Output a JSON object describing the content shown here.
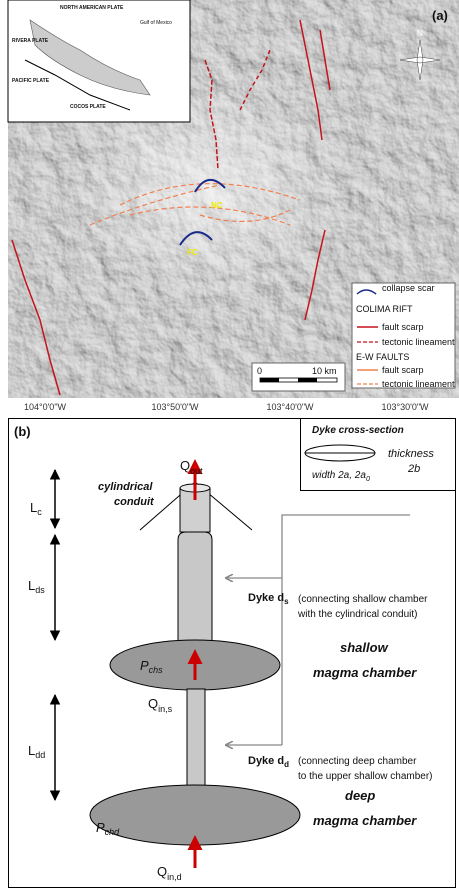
{
  "map": {
    "label": "(a)",
    "north": "N",
    "volcanoes": [
      "NC",
      "FC"
    ],
    "inset": [
      "NORTH AMERICAN PLATE",
      "Gulf of Mexico",
      "RIVERA PLATE",
      "PACIFIC PLATE",
      "COCOS PLATE"
    ],
    "legend": [
      "collapse scar",
      "COLIMA RIFT",
      "fault scarp",
      "tectonic lineament",
      "E-W FAULTS",
      "fault scarp",
      "tectonic lineament"
    ],
    "scale": [
      "0",
      "10 km"
    ],
    "x_labels": [
      "104°0'0\"W",
      "103°50'0\"W",
      "103°40'0\"W",
      "103°30'0\"W"
    ]
  },
  "diagram": {
    "label": "(b)",
    "cross_section": {
      "title": "Dyke cross-section",
      "thickness": [
        "thickness",
        "2b"
      ],
      "width": {
        "main": "width 2a, 2a",
        "sub": "0"
      }
    },
    "q_out": {
      "main": "Q",
      "sub": "out"
    },
    "conduit": [
      "cylindrical",
      "conduit"
    ],
    "l_c": {
      "main": "L",
      "sub": "c"
    },
    "l_ds": {
      "main": "L",
      "sub": "ds"
    },
    "l_dd": {
      "main": "L",
      "sub": "dd"
    },
    "dyke_ds": {
      "main": "Dyke d",
      "sub": "s"
    },
    "dyke_ds_note": [
      "(connecting shallow chamber",
      "with the cylindrical conduit)"
    ],
    "p_chs": {
      "main": "P",
      "sub": "chs"
    },
    "shallow": [
      "shallow",
      "magma chamber"
    ],
    "q_in_s": {
      "main": "Q",
      "sub": "in,s"
    },
    "dyke_dd": {
      "main": "Dyke d",
      "sub": "d"
    },
    "dyke_dd_note": [
      "(connecting deep chamber",
      "to the upper shallow chamber)"
    ],
    "p_chd": {
      "main": "P",
      "sub": "chd"
    },
    "deep": [
      "deep",
      "magma chamber"
    ],
    "q_in_d": {
      "main": "Q",
      "sub": "in,d"
    }
  }
}
